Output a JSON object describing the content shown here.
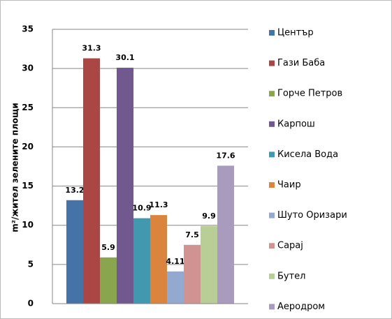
{
  "chart_data": {
    "type": "bar",
    "y_label": "m²/жител зелените площи",
    "categories": [
      null
    ],
    "series": [
      {
        "name": "Център",
        "color": "#4572A7",
        "values": [
          13.2
        ]
      },
      {
        "name": "Гази Баба",
        "color": "#AA4643",
        "values": [
          31.3
        ]
      },
      {
        "name": "Горче Петров",
        "color": "#89A54E",
        "values": [
          5.9
        ]
      },
      {
        "name": "Карпош",
        "color": "#71588F",
        "values": [
          30.1
        ]
      },
      {
        "name": "Кисела Вода",
        "color": "#4198AF",
        "values": [
          10.9
        ]
      },
      {
        "name": "Чаир",
        "color": "#DB843D",
        "values": [
          11.3
        ]
      },
      {
        "name": "Шуто Оризари",
        "color": "#93A9CF",
        "values": [
          4.11
        ]
      },
      {
        "name": "Сарај",
        "color": "#D19392",
        "values": [
          7.5
        ]
      },
      {
        "name": "Бутел",
        "color": "#B9CD96",
        "values": [
          9.9
        ]
      },
      {
        "name": "Аеродром",
        "color": "#A99BBD",
        "values": [
          17.6
        ]
      }
    ],
    "ylim": [
      0,
      35
    ],
    "yticks": [
      0,
      5,
      10,
      15,
      20,
      25,
      30,
      35
    ],
    "grid": true,
    "legend": "right"
  }
}
